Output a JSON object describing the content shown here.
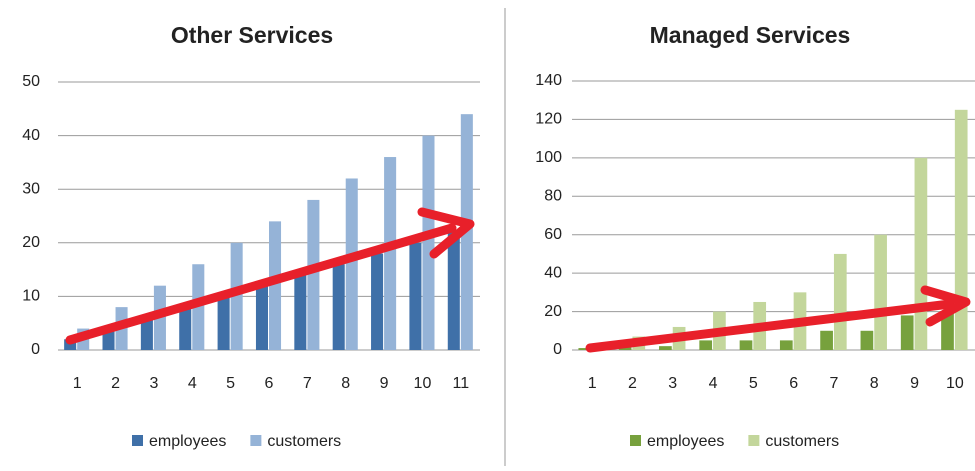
{
  "chart_data": [
    {
      "type": "bar",
      "title": "Other Services",
      "categories": [
        "1",
        "2",
        "3",
        "4",
        "5",
        "6",
        "7",
        "8",
        "9",
        "10",
        "11"
      ],
      "series": [
        {
          "name": "employees",
          "color": "#3f70a8",
          "values": [
            2,
            4,
            6,
            8,
            10,
            12,
            14,
            16,
            18,
            20,
            22
          ]
        },
        {
          "name": "customers",
          "color": "#95b3d7",
          "values": [
            4,
            8,
            12,
            16,
            20,
            24,
            28,
            32,
            36,
            40,
            44
          ]
        }
      ],
      "ylim": [
        0,
        50
      ],
      "yticks": [
        0,
        10,
        20,
        30,
        40,
        50
      ],
      "grid": true,
      "legend": "bottom"
    },
    {
      "type": "bar",
      "title": "Managed Services",
      "categories": [
        "1",
        "2",
        "3",
        "4",
        "5",
        "6",
        "7",
        "8",
        "9",
        "10"
      ],
      "series": [
        {
          "name": "employees",
          "color": "#77a13d",
          "values": [
            1,
            2,
            2,
            5,
            5,
            5,
            10,
            10,
            18,
            20
          ]
        },
        {
          "name": "customers",
          "color": "#c3d69b",
          "values": [
            2,
            7,
            12,
            20,
            25,
            30,
            50,
            60,
            100,
            125
          ]
        }
      ],
      "ylim": [
        0,
        140
      ],
      "yticks": [
        0,
        20,
        40,
        60,
        80,
        100,
        120,
        140
      ],
      "grid": true,
      "legend": "bottom"
    }
  ]
}
